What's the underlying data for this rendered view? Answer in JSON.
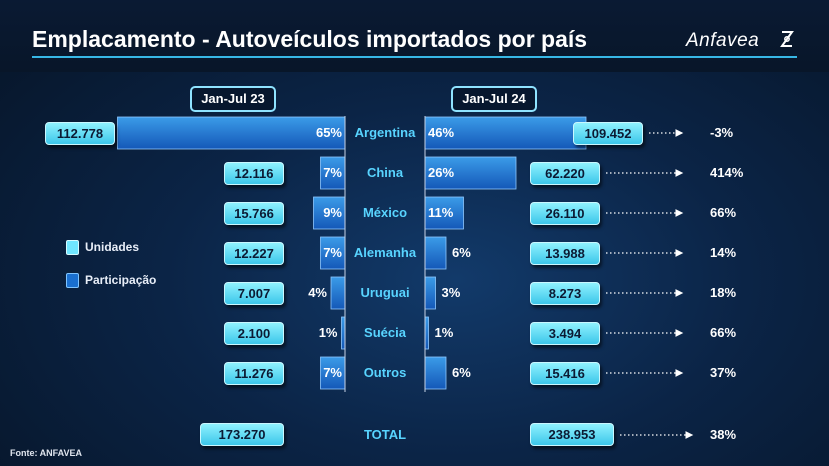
{
  "title": "Emplacamento - Autoveículos importados por país",
  "logo": "Anfavea",
  "periods": [
    "Jan-Jul 23",
    "Jan-Jul 24"
  ],
  "legend": {
    "units": "Unidades",
    "share": "Participação"
  },
  "source": "Fonte: ANFAVEA",
  "colors": {
    "bar": "#1a6fcf",
    "bar_light": "#3b9be8",
    "box": "#5fdcf5",
    "country": "#58d4ff",
    "accent_line": "#37b7e5"
  },
  "rows": [
    {
      "country": "Argentina",
      "units_23": "112.778",
      "pct_23": "65%",
      "pct_24": "46%",
      "units_24": "109.452",
      "growth": "-3%"
    },
    {
      "country": "China",
      "units_23": "12.116",
      "pct_23": "7%",
      "pct_24": "26%",
      "units_24": "62.220",
      "growth": "414%"
    },
    {
      "country": "México",
      "units_23": "15.766",
      "pct_23": "9%",
      "pct_24": "11%",
      "units_24": "26.110",
      "growth": "66%"
    },
    {
      "country": "Alemanha",
      "units_23": "12.227",
      "pct_23": "7%",
      "pct_24": "6%",
      "units_24": "13.988",
      "growth": "14%"
    },
    {
      "country": "Uruguai",
      "units_23": "7.007",
      "pct_23": "4%",
      "pct_24": "3%",
      "units_24": "8.273",
      "growth": "18%"
    },
    {
      "country": "Suécia",
      "units_23": "2.100",
      "pct_23": "1%",
      "pct_24": "1%",
      "units_24": "3.494",
      "growth": "66%"
    },
    {
      "country": "Outros",
      "units_23": "11.276",
      "pct_23": "7%",
      "pct_24": "6%",
      "units_24": "15.416",
      "growth": "37%"
    }
  ],
  "total": {
    "label": "TOTAL",
    "units_23": "173.270",
    "units_24": "238.953",
    "growth": "38%"
  },
  "chart_data": {
    "type": "bar",
    "categories": [
      "Argentina",
      "China",
      "México",
      "Alemanha",
      "Uruguai",
      "Suécia",
      "Outros"
    ],
    "series": [
      {
        "name": "Jan-Jul 23",
        "values": [
          65,
          7,
          9,
          7,
          4,
          1,
          7
        ],
        "units": [
          112778,
          12116,
          15766,
          12227,
          7007,
          2100,
          11276
        ]
      },
      {
        "name": "Jan-Jul 24",
        "values": [
          46,
          26,
          11,
          6,
          3,
          1,
          6
        ],
        "units": [
          109452,
          62220,
          26110,
          13988,
          8273,
          3494,
          15416
        ]
      }
    ],
    "growth": [
      -3,
      414,
      66,
      14,
      18,
      66,
      37
    ],
    "totals": {
      "Jan-Jul 23": 173270,
      "Jan-Jul 24": 238953,
      "growth": 38
    }
  }
}
